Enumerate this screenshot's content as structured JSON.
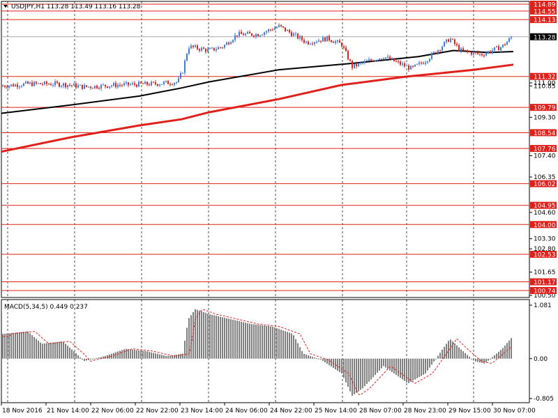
{
  "header": {
    "symbol_info": "USDJPY,H1  113.28 113.49 113.16 113.28",
    "macd_info": "MACD(5,34,5) 0.449 0.237"
  },
  "colors": {
    "bull": "#3b7dd8",
    "bear": "#e0201a",
    "level_line": "#e0201a",
    "ma_fast": "#000000",
    "ma_slow": "#e0201a",
    "macd_hist": "#7f7f7f",
    "macd_signal": "#e0201a",
    "grid": "#000000"
  },
  "chart_data": [
    {
      "type": "candlestick",
      "symbol": "USDJPY",
      "timeframe": "H1",
      "price_axis_labels": [
        "111.00",
        "110.85",
        "109.30",
        "107.40",
        "106.35",
        "104.60",
        "103.30",
        "102.80",
        "101.65",
        "100.50"
      ],
      "highlighted_levels": [
        "114.89",
        "114.55",
        "114.13",
        "113.28",
        "111.32",
        "109.79",
        "108.54",
        "107.76",
        "106.02",
        "104.95",
        "104.00",
        "102.53",
        "101.17",
        "100.74"
      ],
      "time_axis_labels": [
        "18 Nov 2016",
        "21 Nov 14:00",
        "22 Nov 06:00",
        "22 Nov 22:00",
        "23 Nov 14:00",
        "24 Nov 06:00",
        "24 Nov 22:00",
        "25 Nov 14:00",
        "28 Nov 07:00",
        "28 Nov 23:00",
        "29 Nov 15:00",
        "30 Nov 07:00"
      ],
      "last_price": 113.28,
      "price_range": [
        100.5,
        115.0
      ]
    },
    {
      "type": "bar",
      "title": "MACD(5,34,5)",
      "axis_labels": [
        "1.081",
        "0.00",
        "-0.805"
      ],
      "main": 0.449,
      "signal": 0.237
    }
  ]
}
